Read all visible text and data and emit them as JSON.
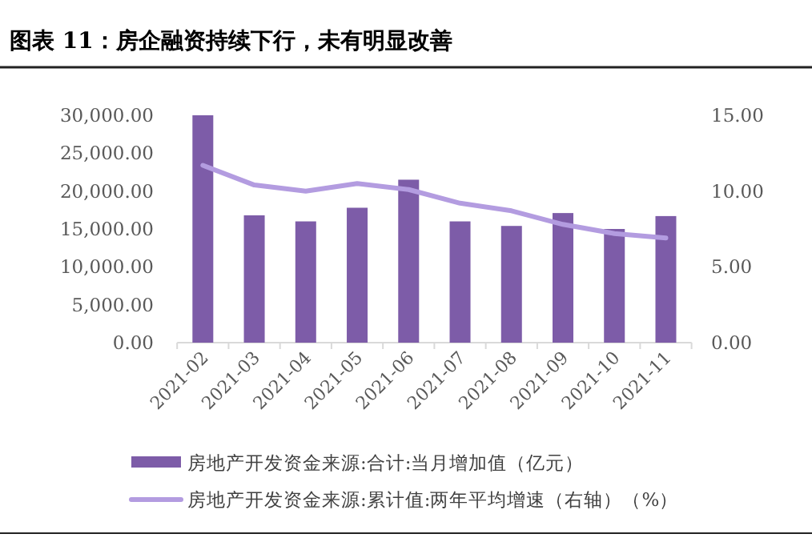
{
  "chart_data": {
    "type": "bar",
    "title": "图表 11：房企融资持续下行，未有明显改善",
    "categories": [
      "2021-02",
      "2021-03",
      "2021-04",
      "2021-05",
      "2021-06",
      "2021-07",
      "2021-08",
      "2021-09",
      "2021-10",
      "2021-11"
    ],
    "series": [
      {
        "name": "房地产开发资金来源:合计:当月增加值（亿元）",
        "color": "#7d5ca8",
        "values": [
          30000,
          16800,
          16000,
          17800,
          21500,
          16000,
          15400,
          17100,
          15000,
          16700
        ]
      },
      {
        "name": "房地产开发资金来源:累计值:两年平均增速（右轴）（%）",
        "type": "line",
        "axis": "y2",
        "color": "#b39ce0",
        "values": [
          11.7,
          10.4,
          10.0,
          10.5,
          10.1,
          9.2,
          8.7,
          7.8,
          7.2,
          6.9
        ]
      }
    ],
    "ylim": [
      0,
      30000
    ],
    "yticks": [
      {
        "value": 0,
        "label": "0.00"
      },
      {
        "value": 5000,
        "label": "5,000.00"
      },
      {
        "value": 10000,
        "label": "10,000.00"
      },
      {
        "value": 15000,
        "label": "15,000.00"
      },
      {
        "value": 20000,
        "label": "20,000.00"
      },
      {
        "value": 25000,
        "label": "25,000.00"
      },
      {
        "value": 30000,
        "label": "30,000.00"
      }
    ],
    "y2lim": [
      0,
      15
    ],
    "y2ticks": [
      {
        "value": 0,
        "label": "0.00"
      },
      {
        "value": 5,
        "label": "5.00"
      },
      {
        "value": 10,
        "label": "10.00"
      },
      {
        "value": 15,
        "label": "15.00"
      }
    ],
    "legend": "bottom",
    "grid": false
  }
}
